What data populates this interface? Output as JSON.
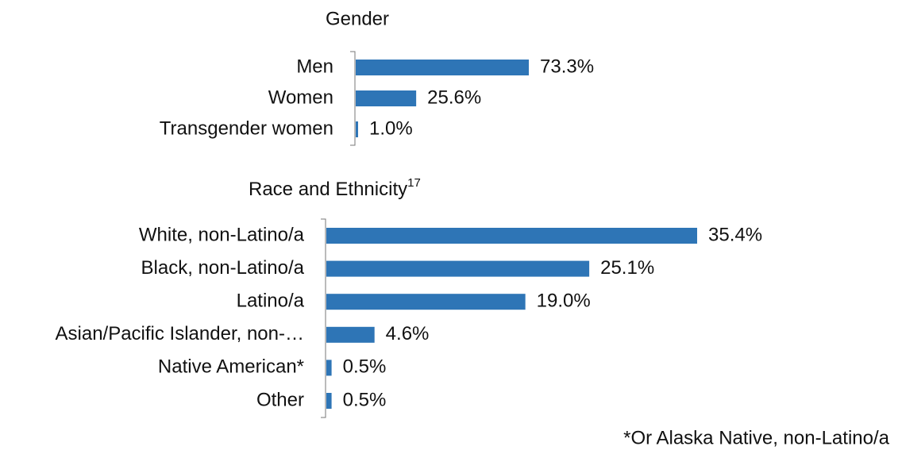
{
  "chart_data": [
    {
      "type": "barh",
      "title": "Gender",
      "categories": [
        "Men",
        "Women",
        "Transgender women"
      ],
      "values": [
        73.3,
        25.6,
        1.0
      ],
      "value_labels": [
        "73.3%",
        "25.6%",
        "1.0%"
      ],
      "color": "#2e75b6"
    },
    {
      "type": "barh",
      "title": "Race and Ethnicity",
      "title_superscript": "17",
      "categories": [
        "White, non-Latino/a",
        "Black, non-Latino/a",
        "Latino/a",
        "Asian/Pacific Islander, non-…",
        "Native American*",
        "Other"
      ],
      "values": [
        35.4,
        25.1,
        19.0,
        4.6,
        0.5,
        0.5
      ],
      "value_labels": [
        "35.4%",
        "25.1%",
        "19.0%",
        "4.6%",
        "0.5%",
        "0.5%"
      ],
      "color": "#2e75b6",
      "annotation": "*Or Alaska Native, non-Latino/a"
    }
  ]
}
